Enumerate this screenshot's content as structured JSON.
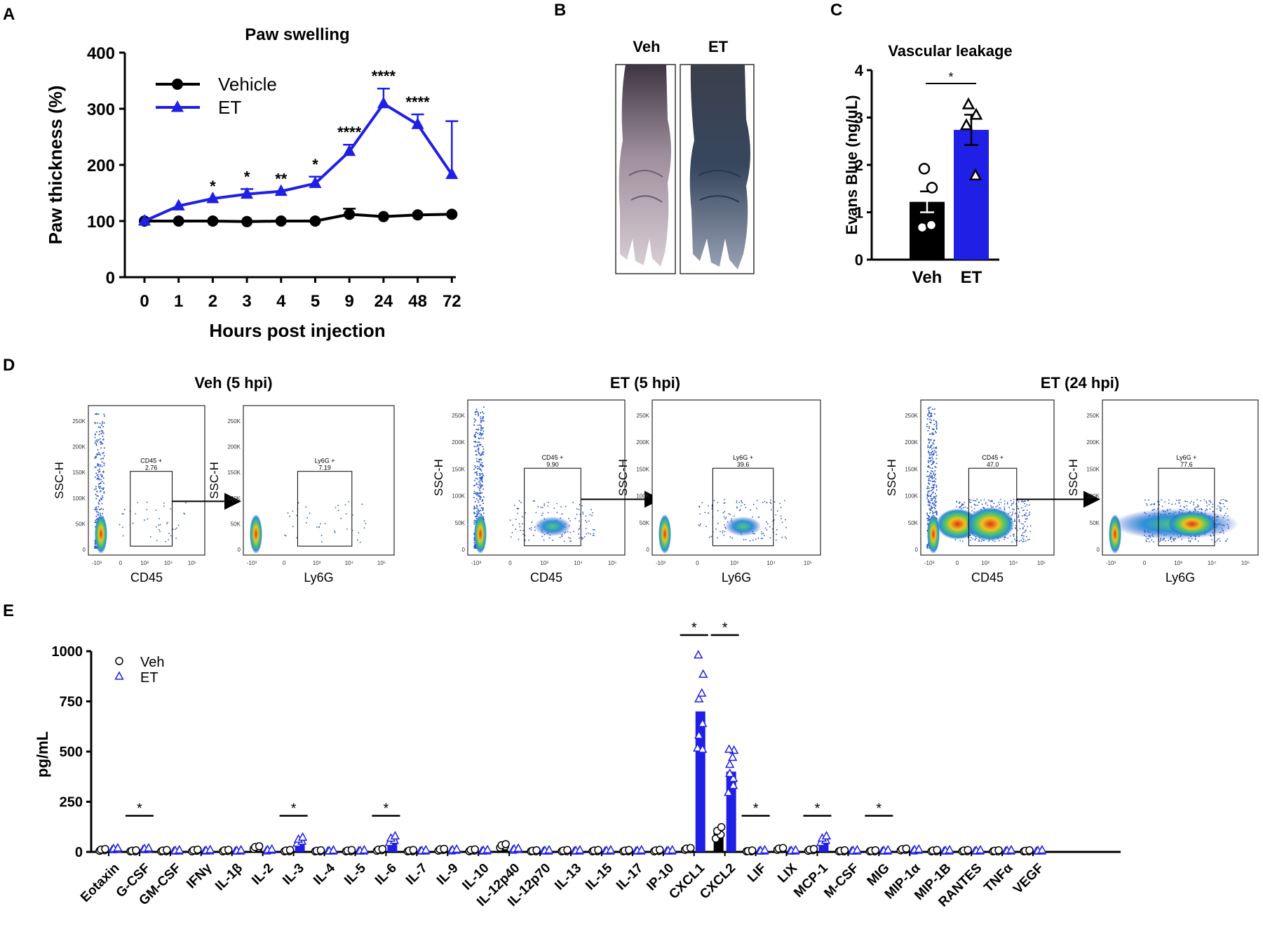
{
  "panel_labels": {
    "a": "A",
    "b": "B",
    "c": "C",
    "d": "D",
    "e": "E"
  },
  "colors": {
    "vehicle": "#000000",
    "et": "#1f1fe6",
    "axis": "#000000"
  },
  "chart_data": [
    {
      "id": "A",
      "type": "line",
      "title": "Paw swelling",
      "xlabel": "Hours post injection",
      "ylabel": "Paw thickness (%)",
      "categories": [
        "0",
        "1",
        "2",
        "3",
        "4",
        "5",
        "9",
        "24",
        "48",
        "72"
      ],
      "ylim": [
        0,
        400
      ],
      "yticks": [
        "0",
        "100",
        "200",
        "300",
        "400"
      ],
      "series": [
        {
          "name": "Vehicle",
          "marker": "circle",
          "values": [
            100,
            100,
            100,
            99,
            100,
            100,
            112,
            108,
            111,
            112
          ],
          "errors": [
            0,
            0,
            0,
            0,
            0,
            0,
            10,
            0,
            0,
            0
          ]
        },
        {
          "name": "ET",
          "marker": "triangle",
          "values": [
            100,
            127,
            140,
            148,
            153,
            167,
            224,
            309,
            272,
            183
          ],
          "errors": [
            0,
            0,
            0,
            9,
            0,
            12,
            12,
            27,
            18,
            95
          ]
        }
      ],
      "significance": [
        "",
        "",
        "*",
        "*",
        "**",
        "*",
        "****",
        "****",
        "****",
        ""
      ],
      "legend_position": "top-left"
    },
    {
      "id": "C",
      "type": "bar",
      "title": "Vascular leakage",
      "ylabel": "Evans Blue (ng/uL)",
      "categories": [
        "Veh",
        "ET"
      ],
      "values": [
        1.22,
        2.74
      ],
      "errors": [
        0.22,
        0.32
      ],
      "points": [
        [
          1.92,
          1.52,
          0.68,
          0.73
        ],
        [
          3.27,
          3.05,
          2.83,
          1.77
        ]
      ],
      "ylim": [
        0,
        4
      ],
      "yticks": [
        "0",
        "1",
        "2",
        "3",
        "4"
      ],
      "significance": "*"
    },
    {
      "id": "E",
      "type": "bar",
      "ylabel": "pg/mL",
      "ylim": [
        0,
        1000
      ],
      "yticks": [
        "0",
        "250",
        "500",
        "750",
        "1000"
      ],
      "legend": [
        "Veh",
        "ET"
      ],
      "legend_position": "top-left",
      "categories": [
        "Eotaxin",
        "G-CSF",
        "GM-CSF",
        "IFNγ",
        "IL-1β",
        "IL-2",
        "IL-3",
        "IL-4",
        "IL-5",
        "IL-6",
        "IL-7",
        "IL-9",
        "IL-10",
        "IL-12p40",
        "IL-12p70",
        "IL-13",
        "IL-15",
        "IL-17",
        "IP-10",
        "CXCL1",
        "CXCL2",
        "LIF",
        "LIX",
        "MCP-1",
        "M-CSF",
        "MIG",
        "MIP-1α",
        "MIP-1B",
        "RANTES",
        "TNFα",
        "VEGF"
      ],
      "series": [
        {
          "name": "Veh",
          "values": [
            10,
            4,
            5,
            7,
            6,
            22,
            5,
            4,
            5,
            10,
            5,
            11,
            8,
            30,
            4,
            5,
            5,
            5,
            6,
            15,
            95,
            3,
            15,
            10,
            4,
            4,
            12,
            5,
            5,
            4,
            4
          ]
        },
        {
          "name": "ET",
          "values": [
            14,
            14,
            4,
            5,
            4,
            8,
            57,
            3,
            4,
            62,
            4,
            8,
            5,
            12,
            4,
            4,
            4,
            4,
            4,
            700,
            400,
            4,
            4,
            62,
            4,
            4,
            8,
            4,
            4,
            4,
            4
          ]
        }
      ],
      "significance_idx": [
        1,
        6,
        9,
        19,
        20,
        21,
        23,
        25
      ],
      "significance_mark": "*"
    }
  ],
  "panel_b": {
    "labels": [
      "Veh",
      "ET"
    ]
  },
  "panel_d": {
    "groups": [
      {
        "title": "Veh (5 hpi)",
        "cd45_gate": {
          "name": "CD45 +",
          "value": "2.76"
        },
        "ly6g_gate": {
          "name": "Ly6G +",
          "value": "7.19"
        }
      },
      {
        "title": "ET (5 hpi)",
        "cd45_gate": {
          "name": "CD45 +",
          "value": "9.90"
        },
        "ly6g_gate": {
          "name": "Ly6G +",
          "value": "39.6"
        }
      },
      {
        "title": "ET (24 hpi)",
        "cd45_gate": {
          "name": "CD45 +",
          "value": "47.0"
        },
        "ly6g_gate": {
          "name": "Ly6G +",
          "value": "77.6"
        }
      }
    ],
    "ylabel": "SSC-H",
    "xlabel_cd45": "CD45",
    "xlabel_ly6g": "Ly6G",
    "yticks": [
      "0",
      "50K",
      "100K",
      "150K",
      "200K",
      "250K"
    ],
    "xticks": [
      "-10³",
      "0",
      "10³",
      "10⁴",
      "10⁵"
    ]
  }
}
